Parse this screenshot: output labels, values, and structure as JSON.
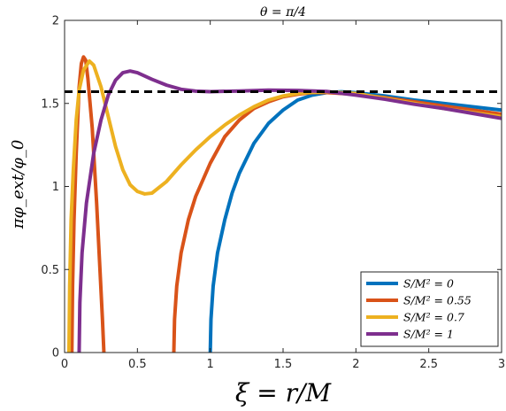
{
  "chart_data": {
    "type": "line",
    "title": "θ = π/4",
    "xlabel": "ξ = r/M",
    "ylabel": "πφ_ext/φ_0",
    "xlim": [
      0,
      3
    ],
    "ylim": [
      0,
      2
    ],
    "xticks": [
      "0",
      "0.5",
      "1",
      "1.5",
      "2",
      "2.5",
      "3"
    ],
    "yticks": [
      "0",
      "0.5",
      "1",
      "1.5",
      "2"
    ],
    "grid": false,
    "legend_position": "bottom-right",
    "reference_line": {
      "y": 1.5708,
      "style": "dashed",
      "color": "#000000"
    },
    "series": [
      {
        "name": "S/M² = 0",
        "color": "#0072BD",
        "segments": [
          [
            [
              1.0,
              0.0
            ],
            [
              1.005,
              0.2
            ],
            [
              1.02,
              0.4
            ],
            [
              1.05,
              0.6
            ],
            [
              1.1,
              0.8
            ],
            [
              1.15,
              0.96
            ],
            [
              1.2,
              1.08
            ],
            [
              1.3,
              1.26
            ],
            [
              1.4,
              1.38
            ],
            [
              1.5,
              1.46
            ],
            [
              1.6,
              1.52
            ],
            [
              1.7,
              1.55
            ],
            [
              1.8,
              1.565
            ],
            [
              1.9,
              1.57
            ],
            [
              2.0,
              1.565
            ],
            [
              2.2,
              1.545
            ],
            [
              2.4,
              1.52
            ],
            [
              2.6,
              1.5
            ],
            [
              2.8,
              1.48
            ],
            [
              3.0,
              1.46
            ]
          ]
        ]
      },
      {
        "name": "S/M² = 0.55",
        "color": "#D95319",
        "segments": [
          [
            [
              0.05,
              0.0
            ],
            [
              0.055,
              0.4
            ],
            [
              0.065,
              0.8
            ],
            [
              0.08,
              1.2
            ],
            [
              0.1,
              1.6
            ],
            [
              0.115,
              1.74
            ],
            [
              0.13,
              1.78
            ],
            [
              0.145,
              1.76
            ],
            [
              0.16,
              1.65
            ],
            [
              0.19,
              1.35
            ],
            [
              0.22,
              0.9
            ],
            [
              0.24,
              0.55
            ],
            [
              0.26,
              0.2
            ],
            [
              0.27,
              0.0
            ]
          ],
          [
            [
              0.75,
              0.0
            ],
            [
              0.755,
              0.2
            ],
            [
              0.77,
              0.4
            ],
            [
              0.8,
              0.6
            ],
            [
              0.85,
              0.8
            ],
            [
              0.9,
              0.94
            ],
            [
              1.0,
              1.14
            ],
            [
              1.1,
              1.3
            ],
            [
              1.2,
              1.4
            ],
            [
              1.3,
              1.47
            ],
            [
              1.4,
              1.51
            ],
            [
              1.5,
              1.54
            ],
            [
              1.6,
              1.555
            ],
            [
              1.7,
              1.565
            ],
            [
              1.8,
              1.565
            ],
            [
              2.0,
              1.555
            ],
            [
              2.2,
              1.535
            ],
            [
              2.4,
              1.51
            ],
            [
              2.6,
              1.485
            ],
            [
              2.8,
              1.46
            ],
            [
              3.0,
              1.435
            ]
          ]
        ]
      },
      {
        "name": "S/M² = 0.7",
        "color": "#EDB120",
        "segments": [
          [
            [
              0.03,
              0.0
            ],
            [
              0.035,
              0.4
            ],
            [
              0.045,
              0.8
            ],
            [
              0.06,
              1.1
            ],
            [
              0.08,
              1.4
            ],
            [
              0.1,
              1.58
            ],
            [
              0.13,
              1.7
            ],
            [
              0.17,
              1.755
            ],
            [
              0.2,
              1.73
            ],
            [
              0.25,
              1.6
            ],
            [
              0.3,
              1.42
            ],
            [
              0.35,
              1.24
            ],
            [
              0.4,
              1.1
            ],
            [
              0.45,
              1.01
            ],
            [
              0.5,
              0.97
            ],
            [
              0.55,
              0.955
            ],
            [
              0.6,
              0.96
            ],
            [
              0.7,
              1.03
            ],
            [
              0.8,
              1.13
            ],
            [
              0.9,
              1.22
            ],
            [
              1.0,
              1.3
            ],
            [
              1.1,
              1.37
            ],
            [
              1.2,
              1.43
            ],
            [
              1.3,
              1.48
            ],
            [
              1.4,
              1.52
            ],
            [
              1.5,
              1.545
            ],
            [
              1.6,
              1.56
            ],
            [
              1.7,
              1.567
            ],
            [
              1.8,
              1.57
            ],
            [
              2.0,
              1.56
            ],
            [
              2.2,
              1.53
            ],
            [
              2.4,
              1.5
            ],
            [
              2.6,
              1.47
            ],
            [
              2.8,
              1.445
            ],
            [
              3.0,
              1.42
            ]
          ]
        ]
      },
      {
        "name": "S/M² = 1",
        "color": "#7E2F8E",
        "segments": [
          [
            [
              0.1,
              0.0
            ],
            [
              0.105,
              0.3
            ],
            [
              0.12,
              0.6
            ],
            [
              0.15,
              0.9
            ],
            [
              0.2,
              1.2
            ],
            [
              0.25,
              1.4
            ],
            [
              0.3,
              1.55
            ],
            [
              0.35,
              1.64
            ],
            [
              0.4,
              1.685
            ],
            [
              0.45,
              1.695
            ],
            [
              0.5,
              1.685
            ],
            [
              0.6,
              1.645
            ],
            [
              0.7,
              1.61
            ],
            [
              0.8,
              1.585
            ],
            [
              0.9,
              1.574
            ],
            [
              1.0,
              1.571
            ],
            [
              1.2,
              1.575
            ],
            [
              1.4,
              1.58
            ],
            [
              1.6,
              1.578
            ],
            [
              1.8,
              1.572
            ],
            [
              2.0,
              1.55
            ],
            [
              2.2,
              1.525
            ],
            [
              2.4,
              1.495
            ],
            [
              2.6,
              1.47
            ],
            [
              2.8,
              1.44
            ],
            [
              3.0,
              1.41
            ]
          ]
        ]
      }
    ]
  }
}
